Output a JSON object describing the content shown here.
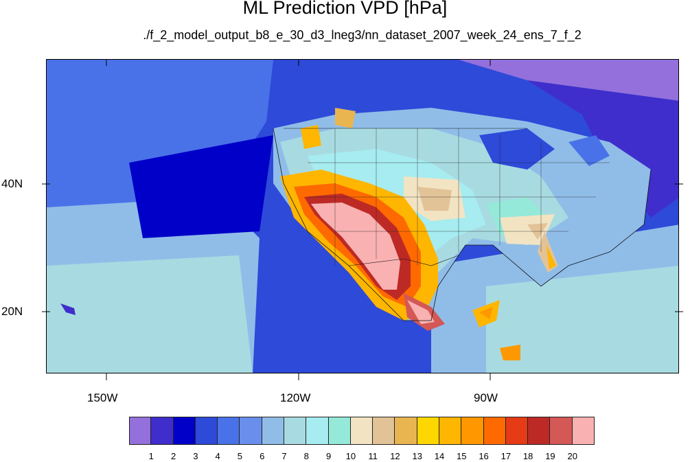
{
  "title": "ML Prediction VPD [hPa]",
  "subtitle": "./f_2_model_output_b8_e_30_d3_lneg3/nn_dataset_2007_week_24_ens_7_f_2",
  "x_tick_labels": [
    "150W",
    "120W",
    "90W"
  ],
  "y_tick_labels": [
    "40N",
    "20N"
  ],
  "colorbar": {
    "colors": [
      "#9370db",
      "#3f2ecb",
      "#0000c8",
      "#2e4ad8",
      "#4a72e8",
      "#6a8eec",
      "#90bde8",
      "#a8dbe1",
      "#a6ecf0",
      "#95e9d9",
      "#f2e4c3",
      "#e2c397",
      "#e8b551",
      "#ffd700",
      "#ffb600",
      "#ff9800",
      "#ff6a00",
      "#e63b17",
      "#bd2a26",
      "#d35856",
      "#f9b1b1"
    ],
    "labels": [
      "1",
      "2",
      "3",
      "4",
      "5",
      "6",
      "7",
      "8",
      "9",
      "10",
      "11",
      "12",
      "13",
      "14",
      "15",
      "16",
      "17",
      "18",
      "19",
      "20"
    ]
  }
}
